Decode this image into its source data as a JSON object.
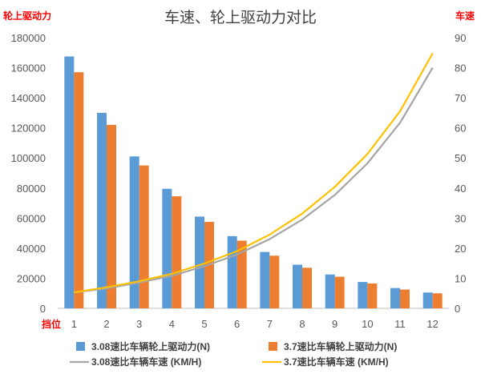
{
  "chart_data": {
    "type": "bar",
    "title": "车速、轮上驱动力对比",
    "ylabel_left": "轮上驱动力",
    "ylabel_right": "车速",
    "xlabel": "挡位",
    "categories": [
      "1",
      "2",
      "3",
      "4",
      "5",
      "6",
      "7",
      "8",
      "9",
      "10",
      "11",
      "12"
    ],
    "ylim_left": [
      0,
      180000
    ],
    "yticks_left": [
      "0",
      "20000",
      "40000",
      "60000",
      "80000",
      "100000",
      "120000",
      "140000",
      "160000",
      "180000"
    ],
    "ylim_right": [
      0,
      90
    ],
    "yticks_right": [
      "0",
      "10",
      "20",
      "30",
      "40",
      "50",
      "60",
      "70",
      "80",
      "90"
    ],
    "series": [
      {
        "name": "3.08速比车辆轮上驱动力(N)",
        "type": "bar",
        "axis": "left",
        "color": "#5B9BD5",
        "values": [
          167500,
          130000,
          101000,
          79500,
          61000,
          48000,
          37500,
          29000,
          22500,
          17500,
          13500,
          10500
        ]
      },
      {
        "name": "3.7速比车辆轮上驱动力(N)",
        "type": "bar",
        "axis": "left",
        "color": "#ED7D31",
        "values": [
          157000,
          122000,
          95000,
          74500,
          57500,
          45000,
          35000,
          27000,
          21000,
          16500,
          12500,
          10000
        ]
      },
      {
        "name": "3.08速比车辆车速  (KM/H)",
        "type": "line",
        "axis": "right",
        "color": "#A5A5A5",
        "values": [
          5.3,
          6.6,
          8.6,
          10.8,
          14.0,
          17.9,
          23.0,
          29.5,
          37.7,
          48.2,
          61.7,
          80.0
        ]
      },
      {
        "name": "3.7速比车辆车速  (KM/H)",
        "type": "line",
        "axis": "right",
        "color": "#FFC000",
        "values": [
          5.3,
          7.0,
          9.0,
          11.5,
          14.9,
          19.0,
          24.5,
          31.5,
          40.4,
          51.3,
          65.5,
          84.8
        ]
      }
    ],
    "grid": false,
    "legend_position": "bottom"
  }
}
